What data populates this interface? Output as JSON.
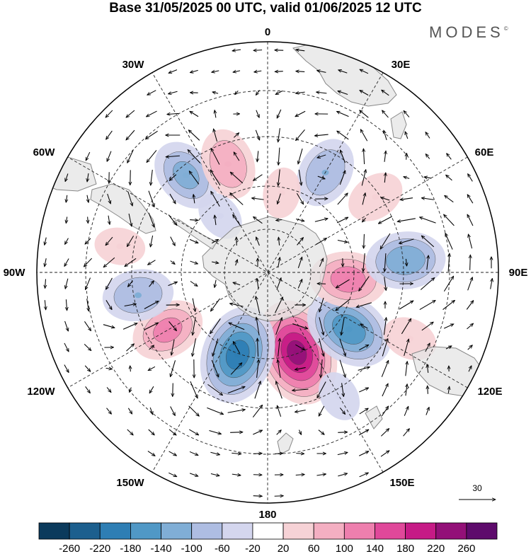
{
  "title": "Base 31/05/2025 00 UTC, valid 01/06/2025 12 UTC",
  "brand": "MODES",
  "brand_mark": "©",
  "longitude_labels": [
    "0",
    "30E",
    "60E",
    "90E",
    "120E",
    "150E",
    "180",
    "150W",
    "120W",
    "90W",
    "60W",
    "30W"
  ],
  "reference_vector": {
    "label": "30"
  },
  "colorbar": {
    "ticks": [
      "-260",
      "-220",
      "-180",
      "-140",
      "-100",
      "-60",
      "-20",
      "20",
      "60",
      "100",
      "140",
      "180",
      "220",
      "260"
    ],
    "colors": [
      "#0b3a5c",
      "#1c5f8e",
      "#2e7eb4",
      "#5098c6",
      "#80aed6",
      "#aebde2",
      "#d4d6ee",
      "#ffffff",
      "#f6d2d6",
      "#f4afc2",
      "#ee7fae",
      "#e0489a",
      "#c61a86",
      "#931078",
      "#5e0b6c"
    ]
  },
  "colors": {
    "land": "#e4e4e4",
    "coast": "#888888",
    "grid": "#222222"
  },
  "anomalies": [
    {
      "lon": 160,
      "lat": -53,
      "value": 230
    },
    {
      "lon": -160,
      "lat": -52,
      "value": -200
    },
    {
      "lon": 125,
      "lat": -47,
      "value": -170
    },
    {
      "lon": 95,
      "lat": -55,
      "value": 120
    },
    {
      "lon": 85,
      "lat": -30,
      "value": -130
    },
    {
      "lon": -120,
      "lat": -40,
      "value": 110
    },
    {
      "lon": -100,
      "lat": -33,
      "value": -100
    },
    {
      "lon": -40,
      "lat": -35,
      "value": -110
    },
    {
      "lon": -20,
      "lat": -40,
      "value": 100
    },
    {
      "lon": 30,
      "lat": -40,
      "value": -100
    },
    {
      "lon": 55,
      "lat": -33,
      "value": 60
    },
    {
      "lon": 115,
      "lat": -22,
      "value": 50
    },
    {
      "lon": -80,
      "lat": -25,
      "value": 40
    },
    {
      "lon": 10,
      "lat": -55,
      "value": 40
    },
    {
      "lon": -40,
      "lat": -58,
      "value": -40
    },
    {
      "lon": 150,
      "lat": -28,
      "value": -40
    }
  ]
}
